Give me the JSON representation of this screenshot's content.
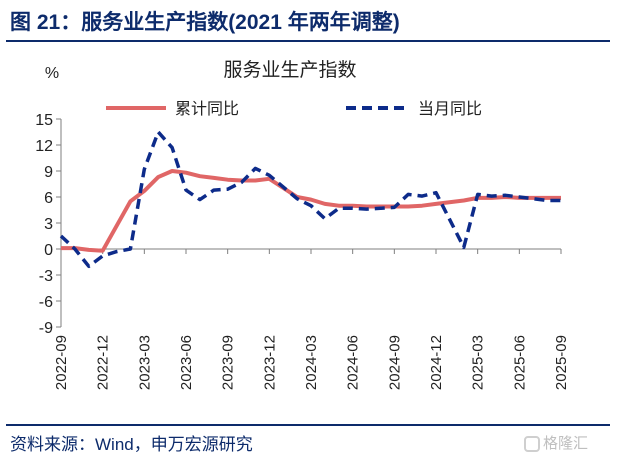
{
  "figure": {
    "title": "图 21：服务业生产指数(2021 年两年调整)",
    "source": "资料来源：Wind，申万宏源研究",
    "watermark": "格隆汇"
  },
  "chart_data": {
    "type": "line",
    "title": "服务业生产指数",
    "ylabel": "%",
    "xlabel": "",
    "ylim": [
      -9,
      15
    ],
    "yticks": [
      15,
      12,
      9,
      6,
      3,
      0,
      -3,
      -6,
      -9
    ],
    "grid": false,
    "legend_position": "top",
    "x_tick_labels": [
      "2022-09",
      "2022-12",
      "2023-03",
      "2023-06",
      "2023-09",
      "2023-12",
      "2024-03",
      "2024-06",
      "2024-09",
      "2024-12",
      "2025-03",
      "2025-06",
      "2025-09"
    ],
    "x": [
      "2022-09",
      "2022-10",
      "2022-11",
      "2022-12",
      "2023-01",
      "2023-02",
      "2023-03",
      "2023-04",
      "2023-05",
      "2023-06",
      "2023-07",
      "2023-08",
      "2023-09",
      "2023-10",
      "2023-11",
      "2023-12",
      "2024-01",
      "2024-02",
      "2024-03",
      "2024-04",
      "2024-05",
      "2024-06",
      "2024-07",
      "2024-08",
      "2024-09",
      "2024-10",
      "2024-11",
      "2024-12",
      "2025-01",
      "2025-02",
      "2025-03",
      "2025-04",
      "2025-05",
      "2025-06",
      "2025-07",
      "2025-08",
      "2025-09"
    ],
    "series": [
      {
        "name": "累计同比",
        "color": "#e06666",
        "style": "solid",
        "values": [
          0.1,
          0.1,
          -0.1,
          -0.2,
          null,
          5.5,
          6.7,
          8.3,
          9.0,
          8.8,
          8.4,
          8.2,
          8.0,
          7.9,
          7.9,
          8.1,
          null,
          6.0,
          5.7,
          5.2,
          5.0,
          5.0,
          4.9,
          4.9,
          4.9,
          4.9,
          5.0,
          5.2,
          null,
          5.6,
          5.9,
          5.9,
          6.0,
          5.9,
          5.9,
          5.9,
          5.9
        ]
      },
      {
        "name": "当月同比",
        "color": "#0d2b8a",
        "style": "dashed",
        "values": [
          1.5,
          0.0,
          -2.0,
          -0.8,
          -0.3,
          0.0,
          9.2,
          13.5,
          11.7,
          6.8,
          5.7,
          6.8,
          6.9,
          7.7,
          9.3,
          8.5,
          null,
          5.8,
          5.0,
          3.5,
          4.7,
          4.7,
          4.6,
          4.7,
          4.8,
          6.3,
          6.1,
          6.5,
          null,
          0.2,
          6.3,
          6.1,
          6.2,
          6.0,
          5.8,
          5.6,
          5.6
        ]
      }
    ]
  }
}
